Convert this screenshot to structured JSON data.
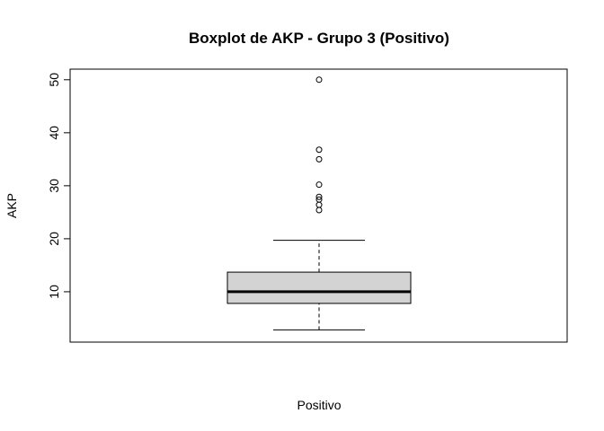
{
  "chart_data": {
    "type": "boxplot",
    "title": "Boxplot de AKP - Grupo 3 (Positivo)",
    "xlabel": "Positivo",
    "ylabel": "AKP",
    "ylim": [
      0.5,
      52
    ],
    "yticks": [
      10,
      20,
      30,
      40,
      50
    ],
    "grid": false,
    "box": {
      "whisker_low": 2.8,
      "q1": 7.8,
      "median": 10.0,
      "q3": 13.7,
      "whisker_high": 19.7,
      "fill": "#d3d3d3"
    },
    "outliers": [
      25.4,
      26.4,
      27.4,
      27.9,
      30.2,
      35.0,
      36.8,
      50.0
    ]
  }
}
